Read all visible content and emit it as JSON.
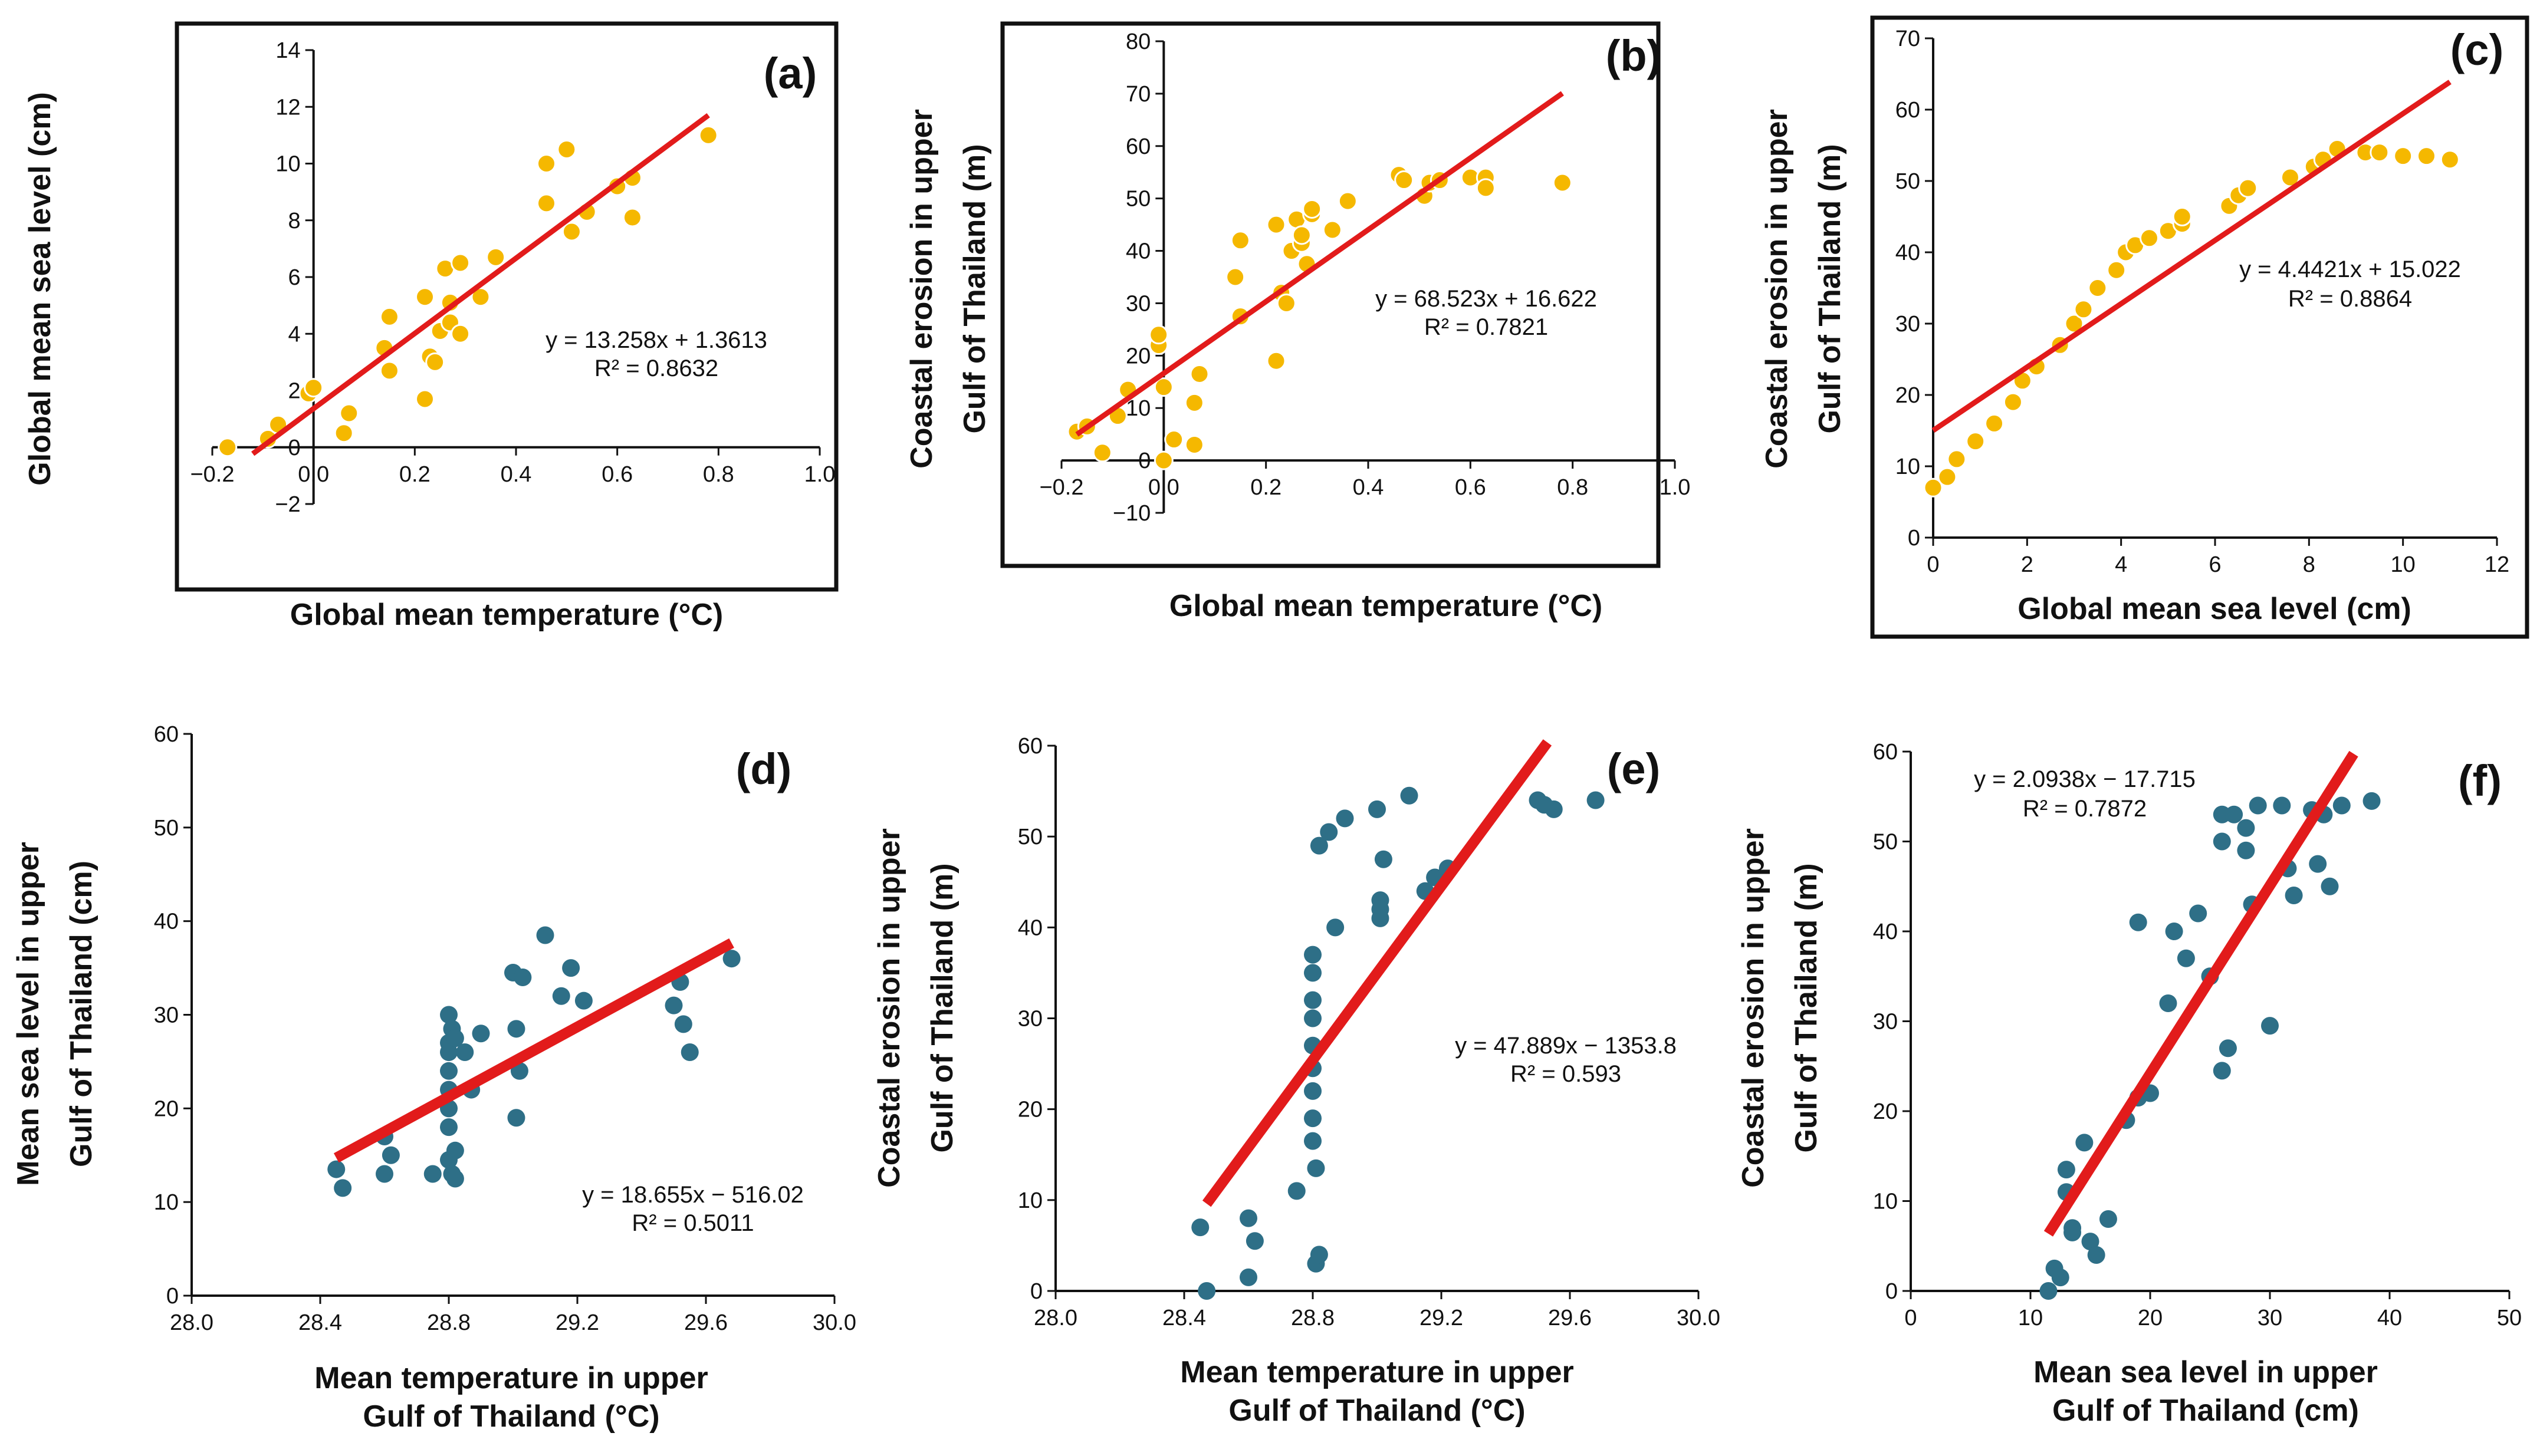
{
  "colors": {
    "yellow_marker": "#F5B800",
    "teal_marker": "#2E6F87",
    "fit_line": "#E21B1B",
    "frame": "#111111"
  },
  "chart_data": [
    {
      "type": "scatter",
      "panel": "(a)",
      "xlabel": "Global mean temperature (°C)",
      "ylabel": "Global mean sea level (cm)",
      "xlim": [
        -0.2,
        1.0
      ],
      "ylim": [
        -2,
        14
      ],
      "xticks": [
        "−0.2",
        "0.0",
        "0.2",
        "0.4",
        "0.6",
        "0.8",
        "1.0"
      ],
      "yticks": [
        "−2",
        "0",
        "2",
        "4",
        "6",
        "8",
        "10",
        "12",
        "14"
      ],
      "equation": "y = 13.258x + 1.3613",
      "r2": "R² = 0.8632",
      "fit": {
        "slope": 13.258,
        "intercept": 1.3613,
        "x_range": [
          -0.12,
          0.78
        ]
      },
      "x": [
        -0.17,
        -0.09,
        -0.07,
        -0.01,
        0.0,
        0.06,
        0.07,
        0.14,
        0.15,
        0.15,
        0.22,
        0.22,
        0.23,
        0.24,
        0.25,
        0.26,
        0.27,
        0.27,
        0.29,
        0.29,
        0.33,
        0.36,
        0.46,
        0.46,
        0.5,
        0.51,
        0.54,
        0.6,
        0.63,
        0.63,
        0.78
      ],
      "y": [
        0.0,
        0.3,
        0.8,
        1.9,
        2.1,
        0.5,
        1.2,
        3.5,
        4.6,
        2.7,
        5.3,
        1.7,
        3.2,
        3.0,
        4.1,
        6.3,
        5.1,
        4.4,
        6.5,
        4.0,
        5.3,
        6.7,
        10.0,
        8.6,
        10.5,
        7.6,
        8.3,
        9.2,
        9.5,
        8.1,
        11.0
      ]
    },
    {
      "type": "scatter",
      "panel": "(b)",
      "xlabel": "Global mean temperature (°C)",
      "ylabel_lines": [
        "Coastal erosion in upper",
        "Gulf of Thailand (m)"
      ],
      "xlim": [
        -0.2,
        1.0
      ],
      "ylim": [
        -10,
        80
      ],
      "xticks": [
        "−0.2",
        "0.0",
        "0.2",
        "0.4",
        "0.6",
        "0.8",
        "1.0"
      ],
      "yticks": [
        "−10",
        "0",
        "10",
        "20",
        "30",
        "40",
        "50",
        "60",
        "70",
        "80"
      ],
      "equation": "y = 68.523x + 16.622",
      "r2": "R² = 0.7821",
      "fit": {
        "slope": 68.523,
        "intercept": 16.622,
        "x_range": [
          -0.17,
          0.78
        ]
      },
      "x": [
        -0.17,
        -0.15,
        -0.12,
        -0.09,
        -0.07,
        -0.01,
        -0.01,
        0.0,
        0.0,
        0.02,
        0.06,
        0.06,
        0.07,
        0.14,
        0.15,
        0.15,
        0.22,
        0.22,
        0.23,
        0.24,
        0.25,
        0.26,
        0.27,
        0.27,
        0.28,
        0.29,
        0.29,
        0.33,
        0.36,
        0.46,
        0.47,
        0.51,
        0.52,
        0.54,
        0.6,
        0.63,
        0.63,
        0.78
      ],
      "y": [
        5.5,
        6.5,
        1.5,
        8.5,
        13.5,
        22.0,
        24.0,
        0.0,
        14.0,
        4.0,
        3.0,
        11.0,
        16.5,
        35.0,
        42.0,
        27.5,
        45.0,
        19.0,
        32.0,
        30.0,
        40.0,
        46.0,
        41.5,
        43.0,
        37.5,
        47.0,
        48.0,
        44.0,
        49.5,
        54.5,
        53.5,
        50.5,
        53.0,
        53.5,
        54.0,
        54.0,
        52.0,
        53.0
      ]
    },
    {
      "type": "scatter",
      "panel": "(c)",
      "xlabel": "Global mean sea level (cm)",
      "ylabel_lines": [
        "Coastal erosion in upper",
        "Gulf of Thailand (m)"
      ],
      "xlim": [
        0,
        12
      ],
      "ylim": [
        0,
        70
      ],
      "xticks": [
        "0",
        "2",
        "4",
        "6",
        "8",
        "10",
        "12"
      ],
      "yticks": [
        "0",
        "10",
        "20",
        "30",
        "40",
        "50",
        "60",
        "70"
      ],
      "equation": "y = 4.4421x + 15.022",
      "r2": "R² = 0.8864",
      "fit": {
        "slope": 4.4421,
        "intercept": 15.022,
        "x_range": [
          0.0,
          11.0
        ]
      },
      "x": [
        0.0,
        0.3,
        0.5,
        0.9,
        1.3,
        1.7,
        1.9,
        2.2,
        2.7,
        3.0,
        3.2,
        3.5,
        3.9,
        4.1,
        4.3,
        4.6,
        5.0,
        5.3,
        5.3,
        6.3,
        6.5,
        6.7,
        7.6,
        8.1,
        8.3,
        8.6,
        9.2,
        9.5,
        10.0,
        10.5,
        11.0
      ],
      "y": [
        7.0,
        8.5,
        11.0,
        13.5,
        16.0,
        19.0,
        22.0,
        24.0,
        27.0,
        30.0,
        32.0,
        35.0,
        37.5,
        40.0,
        41.0,
        42.0,
        43.0,
        44.0,
        45.0,
        46.5,
        48.0,
        49.0,
        50.5,
        52.0,
        53.0,
        54.5,
        54.0,
        54.0,
        53.5,
        53.5,
        53.0
      ]
    },
    {
      "type": "scatter",
      "panel": "(d)",
      "xlabel_lines": [
        "Mean temperature in upper",
        "Gulf of Thailand (°C)"
      ],
      "ylabel_lines": [
        "Mean sea level in upper",
        "Gulf of Thailand (cm)"
      ],
      "xlim": [
        28.0,
        30.0
      ],
      "ylim": [
        0,
        60
      ],
      "xticks": [
        "28.0",
        "28.4",
        "28.8",
        "29.2",
        "29.6",
        "30.0"
      ],
      "yticks": [
        "0",
        "10",
        "20",
        "30",
        "40",
        "50",
        "60"
      ],
      "equation": "y = 18.655x − 516.02",
      "r2": "R² = 0.5011",
      "fit": {
        "slope": 18.655,
        "intercept": -516.02,
        "x_range": [
          28.45,
          29.68
        ]
      },
      "x": [
        28.45,
        28.47,
        28.6,
        28.6,
        28.62,
        28.75,
        28.8,
        28.8,
        28.8,
        28.8,
        28.8,
        28.8,
        28.8,
        28.8,
        28.81,
        28.81,
        28.82,
        28.82,
        28.82,
        28.85,
        28.87,
        28.9,
        29.0,
        29.01,
        29.01,
        29.02,
        29.03,
        29.1,
        29.15,
        29.18,
        29.22,
        29.5,
        29.52,
        29.53,
        29.55,
        29.68
      ],
      "y": [
        13.5,
        11.5,
        17.0,
        13.0,
        15.0,
        13.0,
        30.0,
        26.0,
        27.0,
        24.0,
        22.0,
        20.0,
        18.0,
        14.5,
        13.0,
        28.5,
        15.5,
        12.5,
        27.5,
        26.0,
        22.0,
        28.0,
        34.5,
        28.5,
        19.0,
        24.0,
        34.0,
        38.5,
        32.0,
        35.0,
        31.5,
        31.0,
        33.5,
        29.0,
        26.0,
        36.0
      ]
    },
    {
      "type": "scatter",
      "panel": "(e)",
      "xlabel_lines": [
        "Mean temperature in upper",
        "Gulf of Thailand (°C)"
      ],
      "ylabel_lines": [
        "Coastal erosion in upper",
        "Gulf of Thailand (m)"
      ],
      "xlim": [
        28.0,
        30.0
      ],
      "ylim": [
        0,
        60
      ],
      "xticks": [
        "28.0",
        "28.4",
        "28.8",
        "29.2",
        "29.6",
        "30.0"
      ],
      "yticks": [
        "0",
        "10",
        "20",
        "30",
        "40",
        "50",
        "60"
      ],
      "equation": "y = 47.889x − 1353.8",
      "r2": "R² = 0.593",
      "fit": {
        "slope": 47.889,
        "intercept": -1353.8,
        "x_range": [
          28.47,
          29.53
        ]
      },
      "x": [
        28.45,
        28.47,
        28.6,
        28.6,
        28.62,
        28.75,
        28.8,
        28.8,
        28.8,
        28.8,
        28.8,
        28.8,
        28.8,
        28.8,
        28.8,
        28.81,
        28.81,
        28.82,
        28.82,
        28.85,
        28.87,
        28.9,
        29.0,
        29.01,
        29.01,
        29.01,
        29.02,
        29.1,
        29.15,
        29.18,
        29.22,
        29.5,
        29.52,
        29.55,
        29.68
      ],
      "y": [
        7.0,
        0.0,
        8.0,
        1.5,
        5.5,
        11.0,
        37.0,
        35.0,
        32.0,
        30.0,
        27.0,
        24.5,
        22.0,
        19.0,
        16.5,
        13.5,
        3.0,
        4.0,
        49.0,
        50.5,
        40.0,
        52.0,
        53.0,
        43.0,
        42.0,
        41.0,
        47.5,
        54.5,
        44.0,
        45.5,
        46.5,
        54.0,
        53.5,
        53.0,
        54.0
      ]
    },
    {
      "type": "scatter",
      "panel": "(f)",
      "xlabel_lines": [
        "Mean sea level in upper",
        "Gulf of Thailand (cm)"
      ],
      "ylabel_lines": [
        "Coastal erosion in upper",
        "Gulf of Thailand (m)"
      ],
      "xlim": [
        0,
        50
      ],
      "ylim": [
        0,
        60
      ],
      "xticks": [
        "0",
        "10",
        "20",
        "30",
        "40",
        "50"
      ],
      "yticks": [
        "0",
        "10",
        "20",
        "30",
        "40",
        "50",
        "60"
      ],
      "equation": "y = 2.0938x − 17.715",
      "r2": "R² = 0.7872",
      "fit": {
        "slope": 2.0938,
        "intercept": -17.715,
        "x_range": [
          11.5,
          37.0
        ]
      },
      "x": [
        11.5,
        12.0,
        12.5,
        13.0,
        13.0,
        13.5,
        13.5,
        14.5,
        15.0,
        15.5,
        16.5,
        18.0,
        19.0,
        19.0,
        20.0,
        21.5,
        22.0,
        23.0,
        24.0,
        25.0,
        26.0,
        26.0,
        26.0,
        26.5,
        27.0,
        28.0,
        28.0,
        28.5,
        29.0,
        30.0,
        31.0,
        31.5,
        32.0,
        33.5,
        34.0,
        34.5,
        35.0,
        36.0,
        38.5
      ],
      "y": [
        0.0,
        2.5,
        1.5,
        13.5,
        11.0,
        7.0,
        6.5,
        16.5,
        5.5,
        4.0,
        8.0,
        19.0,
        41.0,
        21.5,
        22.0,
        32.0,
        40.0,
        37.0,
        42.0,
        35.0,
        24.5,
        53.0,
        50.0,
        27.0,
        53.0,
        51.5,
        49.0,
        43.0,
        54.0,
        29.5,
        54.0,
        47.0,
        44.0,
        53.5,
        47.5,
        53.0,
        45.0,
        54.0,
        54.5
      ]
    }
  ]
}
